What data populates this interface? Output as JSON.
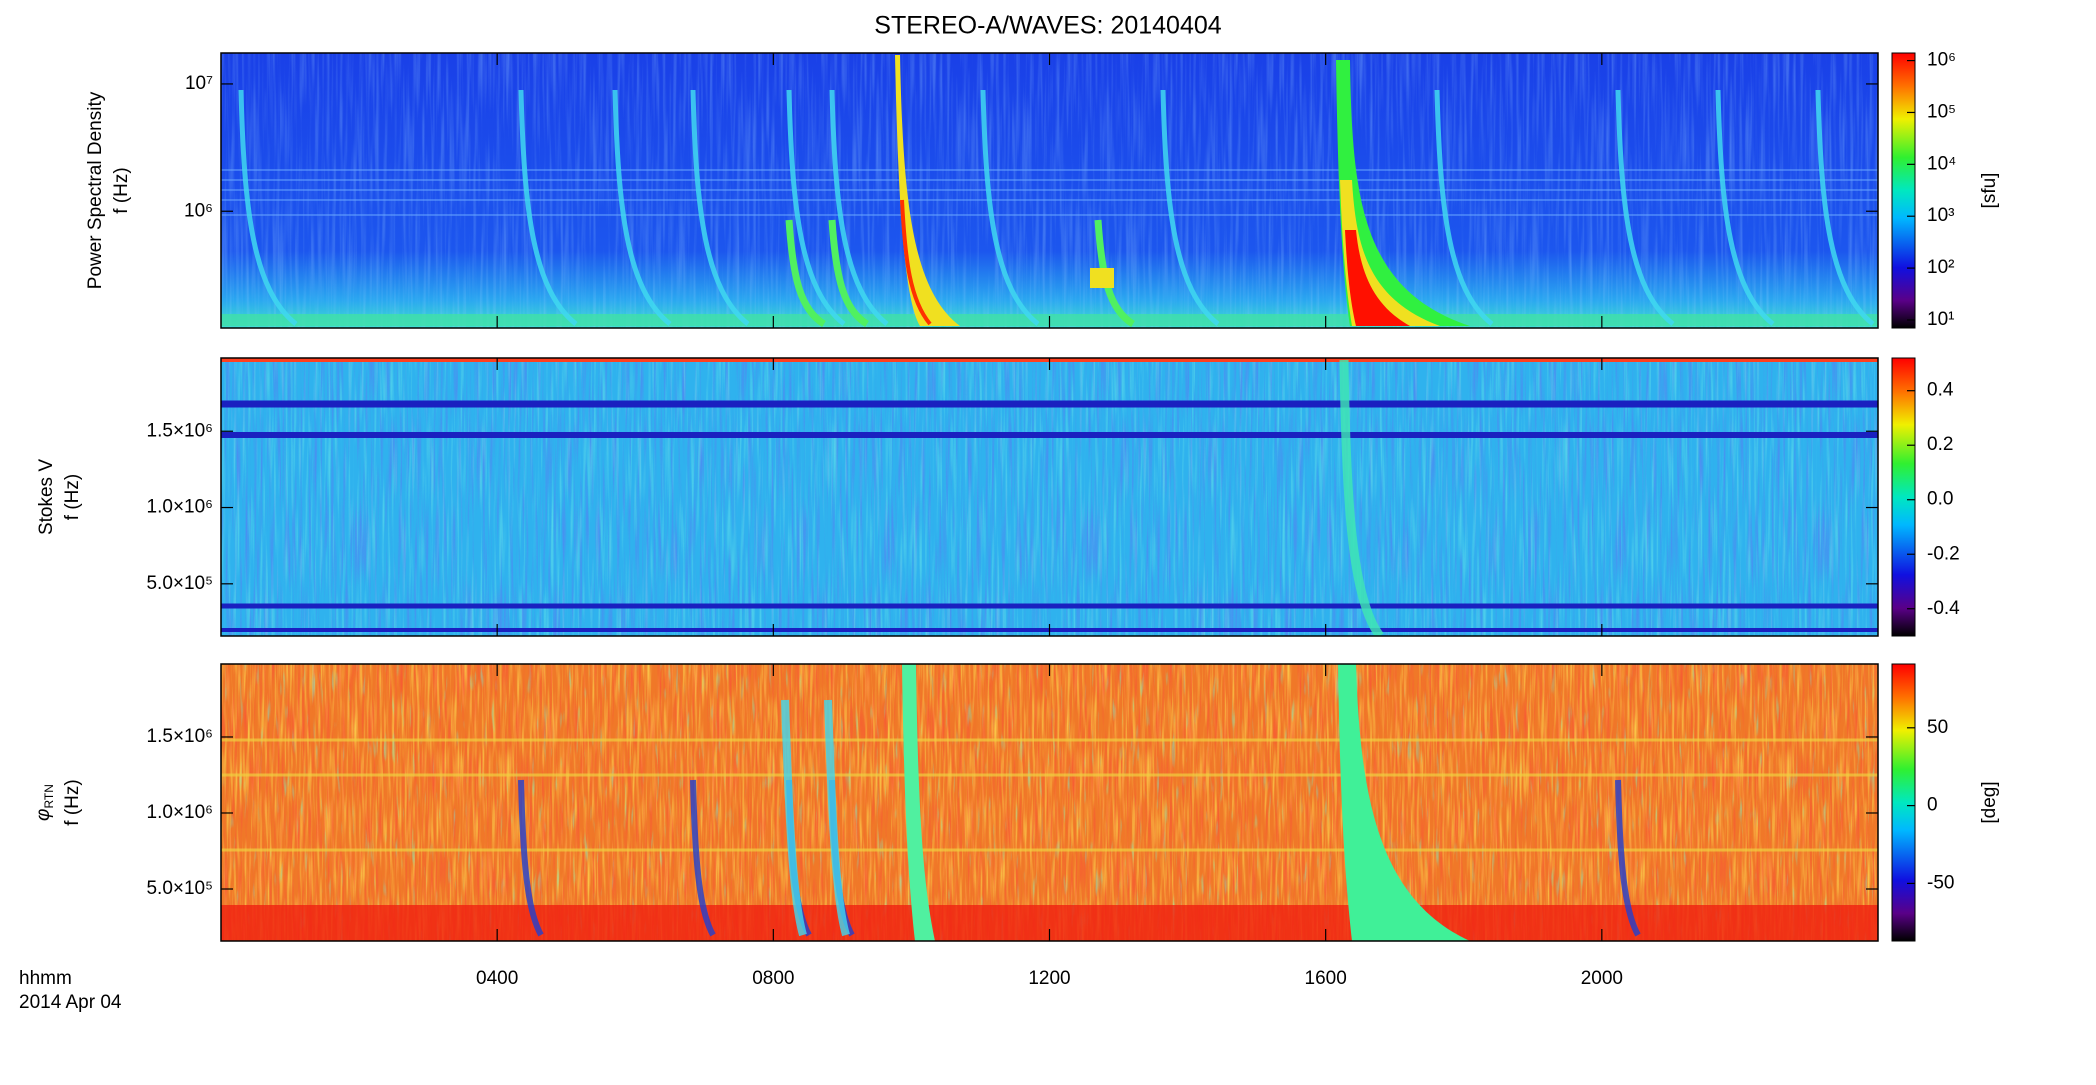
{
  "chart_data": [
    {
      "type": "heatmap",
      "title": "STEREO-A/WAVES: 20140404",
      "quantity": "Power Spectral Density",
      "ylabel": "f (Hz)",
      "xlim": [
        0,
        2400
      ],
      "ylim": [
        121000,
        17500000
      ],
      "ylog": true,
      "yticks": [
        {
          "value": 1000000,
          "label": "10⁶"
        },
        {
          "value": 10000000,
          "label": "10⁷"
        }
      ],
      "clim": [
        7,
        1400000
      ],
      "clog": true,
      "clabel": "[sfu]",
      "cticks": [
        {
          "value": 10,
          "label": "10¹"
        },
        {
          "value": 100,
          "label": "10²"
        },
        {
          "value": 1000,
          "label": "10³"
        },
        {
          "value": 10000,
          "label": "10⁴"
        },
        {
          "value": 100000,
          "label": "10⁵"
        },
        {
          "value": 1000000,
          "label": "10⁶"
        }
      ]
    },
    {
      "type": "heatmap",
      "quantity": "Stokes V",
      "ylabel": "f (Hz)",
      "xlim": [
        0,
        2400
      ],
      "ylim": [
        158000,
        1980000
      ],
      "ylog": false,
      "yticks": [
        {
          "value": 500000,
          "label": "5.0×10⁵"
        },
        {
          "value": 1000000,
          "label": "1.0×10⁶"
        },
        {
          "value": 1500000,
          "label": "1.5×10⁶"
        }
      ],
      "clim": [
        -0.5,
        0.52
      ],
      "clog": false,
      "cticks": [
        -0.4,
        -0.2,
        {
          "value": 0,
          "label": "0.0"
        },
        0.2,
        0.4
      ]
    },
    {
      "type": "heatmap",
      "quantity": "φ",
      "quantity_sub": "RTN",
      "ylabel": "f (Hz)",
      "xlim": [
        0,
        2400
      ],
      "ylim": [
        158000,
        1980000
      ],
      "ylog": false,
      "yticks": [
        {
          "value": 500000,
          "label": "5.0×10⁵"
        },
        {
          "value": 1000000,
          "label": "1.0×10⁶"
        },
        {
          "value": 1500000,
          "label": "1.5×10⁶"
        }
      ],
      "clim": [
        -87,
        91
      ],
      "clog": false,
      "clabel": "[deg]",
      "cticks": [
        -50,
        0,
        50
      ],
      "xticks": [
        {
          "value": 400,
          "label": "0400"
        },
        {
          "value": 800,
          "label": "0800"
        },
        {
          "value": 1200,
          "label": "1200"
        },
        {
          "value": 1600,
          "label": "1600"
        },
        {
          "value": 2000,
          "label": "2000"
        }
      ],
      "xlabel": "hhmm",
      "date": "2014 Apr 04"
    }
  ]
}
